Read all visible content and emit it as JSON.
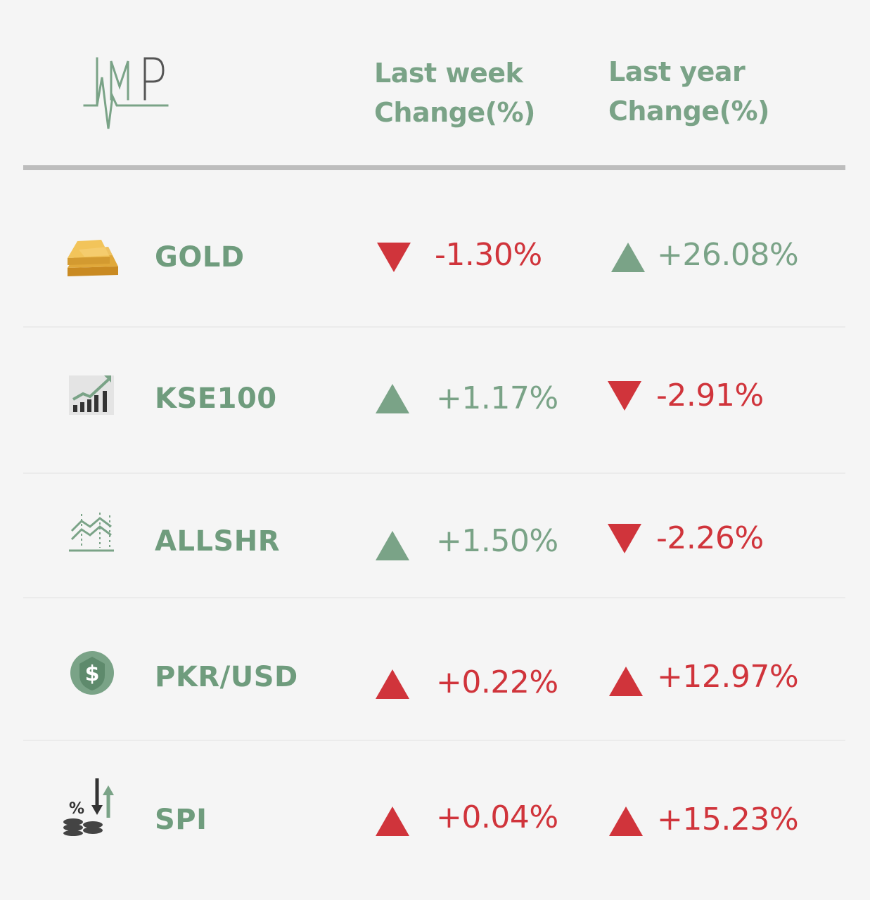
{
  "header": {
    "week_line1": "Last week",
    "week_line2": "Change(%)",
    "year_line1": "Last year",
    "year_line2": "Change(%)"
  },
  "colors": {
    "green": "#7aa387",
    "red": "#d0343b",
    "rule": "#bdbdbd"
  },
  "rows": [
    {
      "name": "GOLD",
      "icon": "gold-bar-icon",
      "week": {
        "value": "-1.30%",
        "direction": "down",
        "color": "red"
      },
      "year": {
        "value": "+26.08%",
        "direction": "up",
        "color": "green"
      }
    },
    {
      "name": "KSE100",
      "icon": "bar-chart-growth-icon",
      "week": {
        "value": "+1.17%",
        "direction": "up",
        "color": "green"
      },
      "year": {
        "value": "-2.91%",
        "direction": "down",
        "color": "red"
      }
    },
    {
      "name": "ALLSHR",
      "icon": "line-chart-icon",
      "week": {
        "value": "+1.50%",
        "direction": "up",
        "color": "green"
      },
      "year": {
        "value": "-2.26%",
        "direction": "down",
        "color": "red"
      }
    },
    {
      "name": "PKR/USD",
      "icon": "dollar-coin-icon",
      "week": {
        "value": "+0.22%",
        "direction": "up",
        "color": "red"
      },
      "year": {
        "value": "+12.97%",
        "direction": "up",
        "color": "red"
      }
    },
    {
      "name": "SPI",
      "icon": "percent-coins-icon",
      "week": {
        "value": "+0.04%",
        "direction": "up",
        "color": "red"
      },
      "year": {
        "value": "+15.23%",
        "direction": "up",
        "color": "red"
      }
    }
  ]
}
